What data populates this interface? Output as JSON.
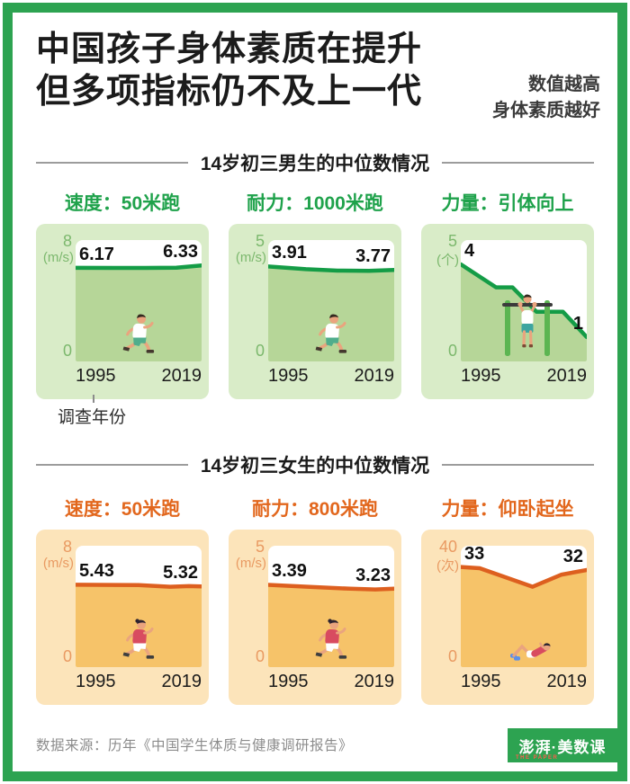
{
  "frame_color": "#2da351",
  "header": {
    "title_line1": "中国孩子身体素质在提升",
    "title_line2": "但多项指标仍不及上一代",
    "note_line1": "数值越高",
    "note_line2": "身体素质越好"
  },
  "sections": {
    "boys_heading": "14岁初三男生的中位数情况",
    "girls_heading": "14岁初三女生的中位数情况"
  },
  "survey_year_note": "调查年份",
  "palettes": {
    "green": {
      "title": "#1fa24b",
      "card_bg": "#d9ecc8",
      "fill": "#b6d698",
      "line": "#149c46",
      "axis": "#7cb86d"
    },
    "orange": {
      "title": "#e2671d",
      "card_bg": "#fce4ba",
      "fill": "#f6c369",
      "line": "#dd5f1f",
      "axis": "#e99a62"
    }
  },
  "chart_data": [
    {
      "type": "line",
      "theme": "green",
      "group": "14岁初三男生",
      "title": "速度：50米跑",
      "unit": "(m/s)",
      "y_axis": {
        "max": 8,
        "min": 0,
        "max_label": "8",
        "min_label": "0"
      },
      "x": [
        "1995",
        "2019"
      ],
      "values": [
        6.17,
        6.33
      ],
      "value_labels": [
        "6.17",
        "6.33"
      ],
      "line_points": [
        [
          0,
          6.17
        ],
        [
          0.55,
          6.16
        ],
        [
          0.8,
          6.18
        ],
        [
          1,
          6.33
        ]
      ],
      "illustration": "running-boy"
    },
    {
      "type": "line",
      "theme": "green",
      "group": "14岁初三男生",
      "title": "耐力：1000米跑",
      "unit": "(m/s)",
      "y_axis": {
        "max": 5,
        "min": 0,
        "max_label": "5",
        "min_label": "0"
      },
      "x": [
        "1995",
        "2019"
      ],
      "values": [
        3.91,
        3.77
      ],
      "value_labels": [
        "3.91",
        "3.77"
      ],
      "line_points": [
        [
          0,
          3.91
        ],
        [
          0.3,
          3.8
        ],
        [
          0.55,
          3.74
        ],
        [
          0.8,
          3.73
        ],
        [
          1,
          3.77
        ]
      ],
      "illustration": "running-boy"
    },
    {
      "type": "line",
      "theme": "green",
      "group": "14岁初三男生",
      "title": "力量：引体向上",
      "unit": "(个)",
      "y_axis": {
        "max": 5,
        "min": 0,
        "max_label": "5",
        "min_label": "0"
      },
      "x": [
        "1995",
        "2019"
      ],
      "values": [
        4,
        1
      ],
      "value_labels": [
        "4",
        "1"
      ],
      "line_points": [
        [
          0,
          4
        ],
        [
          0.28,
          3.05
        ],
        [
          0.41,
          3.05
        ],
        [
          0.6,
          2.05
        ],
        [
          0.81,
          2.05
        ],
        [
          1,
          1
        ]
      ],
      "illustration": "pull-up-boy"
    },
    {
      "type": "line",
      "theme": "orange",
      "group": "14岁初三女生",
      "title": "速度：50米跑",
      "unit": "(m/s)",
      "y_axis": {
        "max": 8,
        "min": 0,
        "max_label": "8",
        "min_label": "0"
      },
      "x": [
        "1995",
        "2019"
      ],
      "values": [
        5.43,
        5.32
      ],
      "value_labels": [
        "5.43",
        "5.32"
      ],
      "line_points": [
        [
          0,
          5.43
        ],
        [
          0.5,
          5.41
        ],
        [
          0.75,
          5.3
        ],
        [
          0.9,
          5.34
        ],
        [
          1,
          5.32
        ]
      ],
      "illustration": "running-girl"
    },
    {
      "type": "line",
      "theme": "orange",
      "group": "14岁初三女生",
      "title": "耐力：800米跑",
      "unit": "(m/s)",
      "y_axis": {
        "max": 5,
        "min": 0,
        "max_label": "5",
        "min_label": "0"
      },
      "x": [
        "1995",
        "2019"
      ],
      "values": [
        3.39,
        3.23
      ],
      "value_labels": [
        "3.39",
        "3.23"
      ],
      "line_points": [
        [
          0,
          3.39
        ],
        [
          0.35,
          3.3
        ],
        [
          0.65,
          3.23
        ],
        [
          0.85,
          3.2
        ],
        [
          1,
          3.23
        ]
      ],
      "illustration": "running-girl"
    },
    {
      "type": "line",
      "theme": "orange",
      "group": "14岁初三女生",
      "title": "力量：仰卧起坐",
      "unit": "(次)",
      "y_axis": {
        "max": 40,
        "min": 0,
        "max_label": "40",
        "min_label": "0"
      },
      "x": [
        "1995",
        "2019"
      ],
      "values": [
        33,
        32
      ],
      "value_labels": [
        "33",
        "32"
      ],
      "line_points": [
        [
          0,
          33
        ],
        [
          0.15,
          32.6
        ],
        [
          0.57,
          26.5
        ],
        [
          0.8,
          30.5
        ],
        [
          1,
          32
        ]
      ],
      "illustration": "sit-up-girl"
    }
  ],
  "footer": {
    "source": "数据来源：历年《中国学生体质与健康调研报告》",
    "logo_main": "澎湃·美数课",
    "logo_sub": "THE PAPER"
  }
}
